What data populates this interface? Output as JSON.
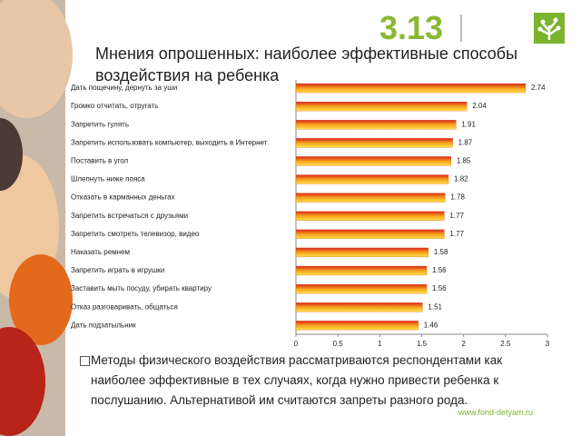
{
  "slide_number": "3.13",
  "chart_data": {
    "type": "bar",
    "orientation": "horizontal",
    "title": "Мнения опрошенных: наиболее эффективные способы воздействия на ребенка",
    "categories": [
      "Дать пощечину, дернуть за уши",
      "Громко отчитать, отругать",
      "Запретить гулять",
      "Запретить использовать компьютер, выходить в Интернет",
      "Поставить в угол",
      "Шлепнуть ниже пояса",
      "Отказать в карманных деньгах",
      "Запретить встречаться с друзьями",
      "Запретить смотреть телевизор, видео",
      "Наказать ремнем",
      "Запретить играть в игрушки",
      "Заставить мыть посуду, убирать квартиру",
      "Отказ разговаривать, общаться",
      "Дать подзатыльник"
    ],
    "values": [
      2.74,
      2.04,
      1.91,
      1.87,
      1.85,
      1.82,
      1.78,
      1.77,
      1.77,
      1.58,
      1.56,
      1.56,
      1.51,
      1.46
    ],
    "xlim": [
      0,
      3
    ],
    "xticks": [
      0,
      0.5,
      1,
      1.5,
      2,
      2.5,
      3
    ],
    "color": "#e8501a"
  },
  "bullet": "Методы физического воздействия рассматриваются респондентами как наиболее эффективные в тех случаях, когда нужно привести ребенка к послушанию. Альтернативой им считаются запреты разного рода.",
  "footer_url": "www.fond-detyam.ru"
}
